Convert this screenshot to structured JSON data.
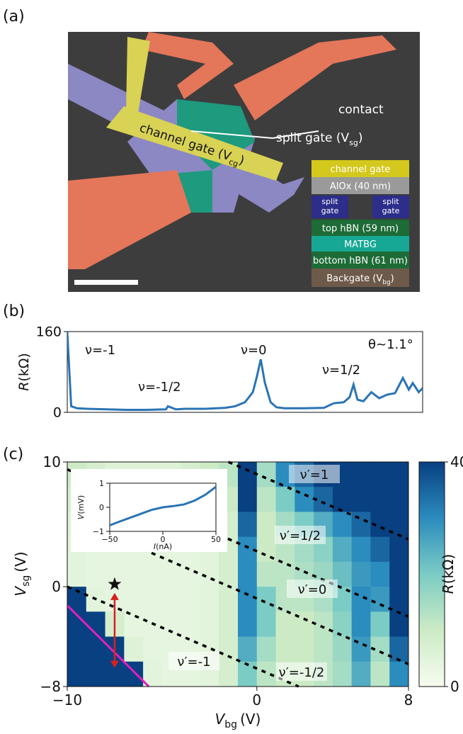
{
  "panel_labels": [
    "(a)",
    "(b)",
    "(c)"
  ],
  "device_image": {
    "contact": "contact",
    "split_gate": {
      "main": "split gate (V",
      "sub": "sg",
      "end": ")"
    },
    "channel_gate": {
      "main": "channel gate (V",
      "sub": "cg",
      "end": ")"
    },
    "layers": [
      {
        "label": "channel gate",
        "color": "#d4c81c"
      },
      {
        "label": "AlOx (40 nm)",
        "color": "#9a9a9a"
      },
      {
        "label": [
          "split",
          "gate"
        ],
        "color": "#2c2e8a"
      },
      {
        "label": "top hBN (59 nm)",
        "color": "#1d6b36"
      },
      {
        "label": "MATBG",
        "color": "#16a894"
      },
      {
        "label": "bottom hBN (61 nm)",
        "color": "#1d6b36"
      },
      {
        "label": {
          "main": "Backgate (V",
          "sub": "bg",
          "end": ")"
        },
        "color": "#6e5a4a"
      }
    ]
  },
  "chart_data": [
    {
      "type": "line",
      "ylabel": {
        "main": "R",
        "unit": "(kΩ)"
      },
      "xlim": [
        -10,
        8
      ],
      "ylim": [
        0,
        160
      ],
      "yticks": [
        0,
        160
      ],
      "color": "#2a74b4",
      "annotations": [
        "ν=-1",
        "ν=-1/2",
        "ν=0",
        "ν=1/2",
        "θ~1.1°"
      ],
      "x": [
        -10,
        -9.8,
        -9.5,
        -9,
        -8,
        -7,
        -6,
        -5,
        -4.9,
        -4.5,
        -4,
        -3,
        -2,
        -1.5,
        -1,
        -0.6,
        -0.4,
        -0.2,
        0,
        0.3,
        0.6,
        1,
        2,
        3,
        3.5,
        4,
        4.3,
        4.5,
        4.7,
        5,
        5.4,
        5.8,
        6.2,
        6.6,
        7,
        7.3,
        7.5,
        7.8,
        8
      ],
      "values": [
        160,
        12,
        8,
        7,
        6,
        5,
        5,
        6,
        12,
        6,
        7,
        7,
        9,
        12,
        20,
        40,
        70,
        105,
        60,
        20,
        10,
        8,
        8,
        9,
        18,
        20,
        30,
        55,
        25,
        22,
        40,
        28,
        35,
        38,
        68,
        45,
        58,
        40,
        48
      ]
    },
    {
      "type": "heatmap",
      "xlabel": {
        "main": "V",
        "sub": "bg",
        "unit": "(V)"
      },
      "ylabel": {
        "main": "V",
        "sub": "sg",
        "unit": "(V)"
      },
      "xlim": [
        -10,
        8
      ],
      "ylim": [
        -8,
        10
      ],
      "xticks": [
        {
          "value": -10,
          "label": "−10"
        },
        0,
        8
      ],
      "yticks": [
        {
          "value": -8,
          "label": "−8"
        },
        0,
        10
      ],
      "cmap": "GnBu",
      "clim": [
        0,
        40
      ],
      "cticks": [
        0,
        40
      ],
      "colorbar_label": {
        "main": "R",
        "unit": "(kΩ)"
      },
      "xbins": [
        -10,
        -9,
        -8,
        -7,
        -6,
        -5,
        -4,
        -3,
        -2,
        -1,
        0,
        1,
        2,
        3,
        4,
        5,
        6,
        7,
        8
      ],
      "ybins": [
        10,
        8,
        6,
        4,
        2,
        0,
        -2,
        -4,
        -6,
        -8
      ],
      "z": [
        [
          10,
          8,
          6,
          6,
          6,
          6,
          8,
          10,
          12,
          40,
          15,
          30,
          35,
          40,
          40,
          40,
          40,
          40
        ],
        [
          8,
          6,
          5,
          5,
          5,
          5,
          6,
          8,
          10,
          40,
          12,
          20,
          30,
          35,
          40,
          40,
          40,
          40
        ],
        [
          6,
          5,
          4,
          4,
          4,
          4,
          5,
          6,
          8,
          35,
          10,
          15,
          20,
          25,
          30,
          35,
          40,
          40
        ],
        [
          5,
          4,
          4,
          4,
          4,
          4,
          4,
          5,
          8,
          30,
          10,
          12,
          15,
          18,
          25,
          30,
          35,
          40
        ],
        [
          5,
          4,
          4,
          4,
          4,
          4,
          4,
          5,
          8,
          30,
          12,
          12,
          14,
          16,
          22,
          28,
          30,
          40
        ],
        [
          40,
          5,
          4,
          4,
          4,
          4,
          4,
          5,
          8,
          30,
          20,
          12,
          12,
          14,
          20,
          30,
          28,
          40
        ],
        [
          40,
          40,
          8,
          4,
          4,
          4,
          4,
          5,
          8,
          30,
          20,
          10,
          10,
          12,
          18,
          30,
          20,
          40
        ],
        [
          40,
          40,
          40,
          6,
          4,
          4,
          4,
          5,
          8,
          25,
          15,
          10,
          10,
          12,
          16,
          28,
          15,
          35
        ],
        [
          40,
          40,
          40,
          40,
          5,
          4,
          4,
          5,
          8,
          20,
          12,
          10,
          10,
          12,
          15,
          25,
          12,
          30
        ]
      ],
      "dashed_lines": [
        [
          -10,
          9.4,
          8,
          -2.4
        ],
        [
          -1.5,
          10,
          8,
          3.8
        ],
        [
          -6,
          3,
          8,
          -6.2
        ],
        [
          -10,
          0,
          2.2,
          -8
        ]
      ],
      "boundary": [
        [
          -10,
          -1.5
        ],
        [
          -5.7,
          -8
        ]
      ],
      "star": [
        -7.5,
        0.2
      ],
      "arrow": [
        -7.5,
        -0.5,
        -6.5
      ],
      "annotations": [
        "ν′=1",
        "ν′=1/2",
        "ν′=0",
        "ν′=-1/2",
        "ν′=-1"
      ]
    },
    {
      "type": "line",
      "xlabel": {
        "main": "I",
        "unit": "(nA)"
      },
      "ylabel": {
        "main": "V",
        "unit": "(mV)"
      },
      "xlim": [
        -50,
        50
      ],
      "ylim": [
        -1,
        1
      ],
      "xticks": [
        {
          "value": -50,
          "label": "−50"
        },
        0,
        50
      ],
      "yticks": [
        {
          "value": -1,
          "label": "−1"
        },
        0,
        1
      ],
      "color": "#2a74b4",
      "x": [
        -50,
        -40,
        -30,
        -20,
        -10,
        0,
        10,
        20,
        30,
        40,
        50
      ],
      "values": [
        -0.75,
        -0.58,
        -0.42,
        -0.26,
        -0.1,
        0.0,
        0.05,
        0.12,
        0.28,
        0.52,
        0.85
      ]
    }
  ]
}
